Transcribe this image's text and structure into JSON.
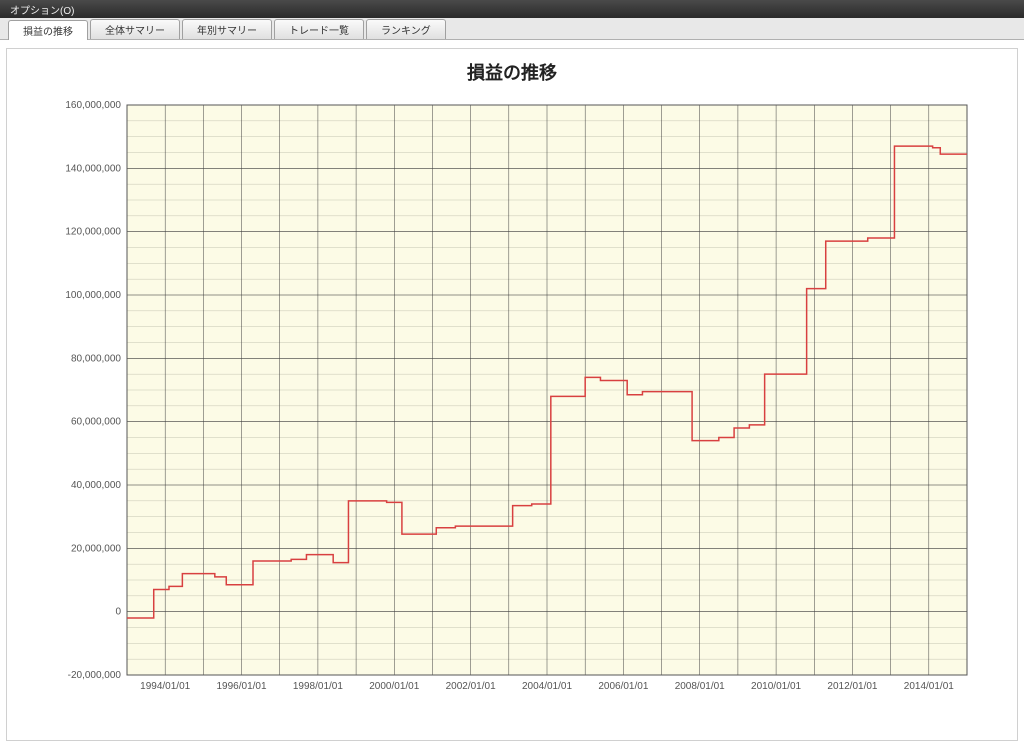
{
  "menubar": {
    "option_label": "オプション(O)"
  },
  "tabs": [
    {
      "label": "損益の推移",
      "active": true
    },
    {
      "label": "全体サマリー",
      "active": false
    },
    {
      "label": "年別サマリー",
      "active": false
    },
    {
      "label": "トレード一覧",
      "active": false
    },
    {
      "label": "ランキング",
      "active": false
    }
  ],
  "chart": {
    "type": "step-line",
    "title": "損益の推移",
    "title_fontsize": 18,
    "background_color": "#ffffff",
    "plot_color": "#fcfbe6",
    "grid_major_color": "#3f3f3f",
    "grid_minor_color": "#c5c5b2",
    "axis_color": "#555555",
    "line_color": "#d84040",
    "line_width": 1.5,
    "label_fontsize": 10,
    "x_axis": {
      "ticks": [
        "1994/01/01",
        "1996/01/01",
        "1998/01/01",
        "2000/01/01",
        "2002/01/01",
        "2004/01/01",
        "2006/01/01",
        "2008/01/01",
        "2010/01/01",
        "2012/01/01",
        "2014/01/01"
      ],
      "label_rotation": 0
    },
    "y_axis": {
      "min": -20000000,
      "max": 160000000,
      "step": 20000000,
      "ticks": [
        "-20,000,000",
        "0",
        "20,000,000",
        "40,000,000",
        "60,000,000",
        "80,000,000",
        "100,000,000",
        "120,000,000",
        "140,000,000",
        "160,000,000"
      ]
    },
    "series": [
      {
        "t": 0.0,
        "v": -2000000
      },
      {
        "t": 0.25,
        "v": -2000000
      },
      {
        "t": 0.7,
        "v": 7000000
      },
      {
        "t": 1.1,
        "v": 8000000
      },
      {
        "t": 1.45,
        "v": 12000000
      },
      {
        "t": 2.3,
        "v": 11000000
      },
      {
        "t": 2.6,
        "v": 8500000
      },
      {
        "t": 3.3,
        "v": 16000000
      },
      {
        "t": 4.3,
        "v": 16500000
      },
      {
        "t": 4.7,
        "v": 18000000
      },
      {
        "t": 5.4,
        "v": 15500000
      },
      {
        "t": 5.8,
        "v": 35000000
      },
      {
        "t": 6.8,
        "v": 34500000
      },
      {
        "t": 7.2,
        "v": 24500000
      },
      {
        "t": 8.1,
        "v": 26500000
      },
      {
        "t": 8.6,
        "v": 27000000
      },
      {
        "t": 9.2,
        "v": 27000000
      },
      {
        "t": 10.1,
        "v": 33500000
      },
      {
        "t": 10.6,
        "v": 34000000
      },
      {
        "t": 11.1,
        "v": 68000000
      },
      {
        "t": 12.0,
        "v": 74000000
      },
      {
        "t": 12.4,
        "v": 73000000
      },
      {
        "t": 13.1,
        "v": 68500000
      },
      {
        "t": 13.5,
        "v": 69500000
      },
      {
        "t": 14.3,
        "v": 69500000
      },
      {
        "t": 14.8,
        "v": 54000000
      },
      {
        "t": 15.5,
        "v": 55000000
      },
      {
        "t": 15.9,
        "v": 58000000
      },
      {
        "t": 16.3,
        "v": 59000000
      },
      {
        "t": 16.7,
        "v": 75000000
      },
      {
        "t": 17.5,
        "v": 75000000
      },
      {
        "t": 17.8,
        "v": 102000000
      },
      {
        "t": 18.3,
        "v": 117000000
      },
      {
        "t": 19.4,
        "v": 118000000
      },
      {
        "t": 19.8,
        "v": 118000000
      },
      {
        "t": 20.1,
        "v": 147000000
      },
      {
        "t": 21.1,
        "v": 146500000
      },
      {
        "t": 21.3,
        "v": 144500000
      },
      {
        "t": 22.0,
        "v": 144500000
      }
    ],
    "x_time_origin_year": 1993,
    "x_time_span_years": 22
  }
}
